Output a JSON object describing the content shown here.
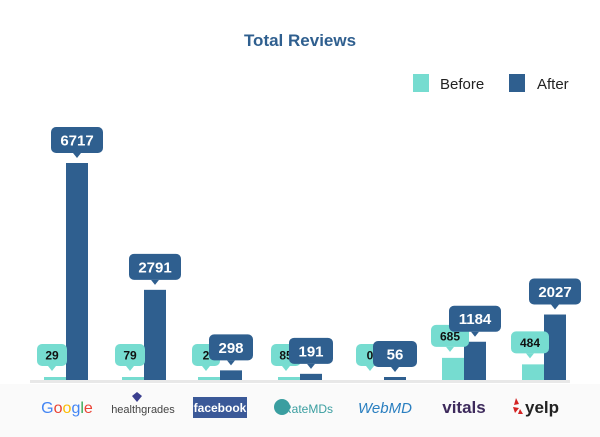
{
  "chart_data": {
    "type": "bar",
    "title": "Total Reviews",
    "categories": [
      "Google",
      "healthgrades",
      "facebook",
      "RateMDs",
      "WebMD",
      "vitals",
      "yelp"
    ],
    "series": [
      {
        "name": "Before",
        "color": "#76dcd0",
        "values": [
          29,
          79,
          2,
          85,
          0,
          685,
          484
        ]
      },
      {
        "name": "After",
        "color": "#2f5f8f",
        "values": [
          6717,
          2791,
          298,
          191,
          56,
          1184,
          2027
        ]
      }
    ],
    "xlabel": "",
    "ylabel": "",
    "legend": "top-right",
    "grid": false,
    "data_labels": true,
    "x_tick_style": "brand logos"
  },
  "colors": {
    "title": "#2f5f8f",
    "baseline": "#e3e3e3"
  }
}
